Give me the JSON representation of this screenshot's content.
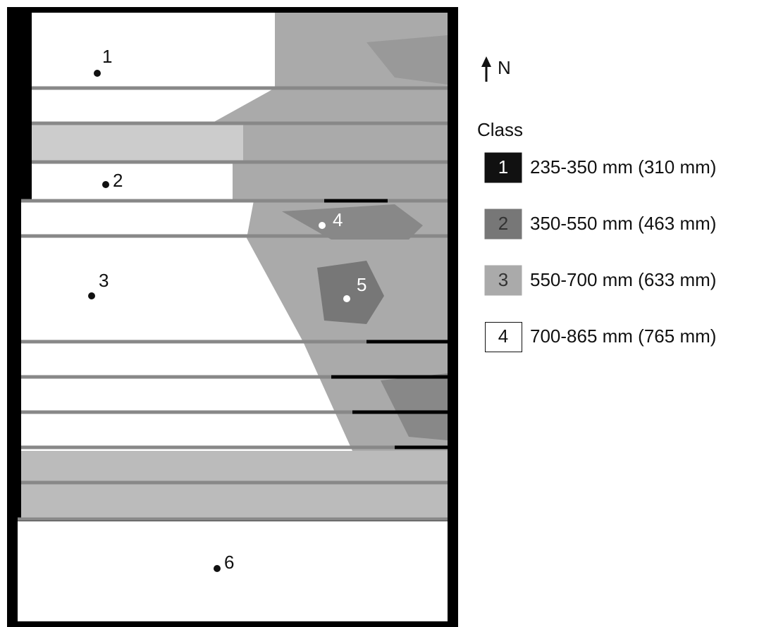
{
  "map": {
    "points": [
      {
        "label": "1"
      },
      {
        "label": "2"
      },
      {
        "label": "3"
      },
      {
        "label": "4"
      },
      {
        "label": "5"
      },
      {
        "label": "6"
      }
    ]
  },
  "north": "N",
  "legend": {
    "title": "Class",
    "items": [
      {
        "class": "1",
        "range": "235-350 mm (310 mm)"
      },
      {
        "class": "2",
        "range": "350-550 mm (463 mm)"
      },
      {
        "class": "3",
        "range": "550-700 mm (633 mm)"
      },
      {
        "class": "4",
        "range": "700-865 mm (765 mm)"
      }
    ]
  }
}
